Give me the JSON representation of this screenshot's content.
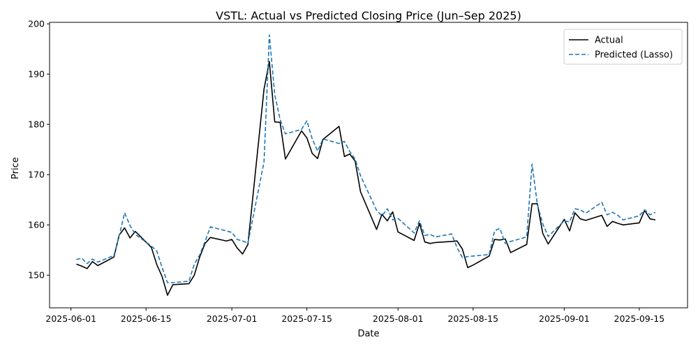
{
  "chart_data": {
    "type": "line",
    "title": "VSTL: Actual vs Predicted Closing Price (Jun–Sep 2025)",
    "xlabel": "Date",
    "ylabel": "Price",
    "xlim": [
      "2025-05-28",
      "2025-09-24"
    ],
    "ylim": [
      143.5,
      200.3
    ],
    "x_ticks": [
      "2025-06-01",
      "2025-06-15",
      "2025-07-01",
      "2025-07-15",
      "2025-08-01",
      "2025-08-15",
      "2025-09-01",
      "2025-09-15"
    ],
    "y_ticks": [
      150,
      160,
      170,
      180,
      190,
      200
    ],
    "grid": false,
    "legend_position": "top-right",
    "series": [
      {
        "name": "Actual",
        "color": "#000000",
        "style": "solid",
        "x": [
          "2025-06-02",
          "2025-06-03",
          "2025-06-04",
          "2025-06-05",
          "2025-06-06",
          "2025-06-09",
          "2025-06-10",
          "2025-06-11",
          "2025-06-12",
          "2025-06-13",
          "2025-06-16",
          "2025-06-17",
          "2025-06-18",
          "2025-06-19",
          "2025-06-20",
          "2025-06-23",
          "2025-06-24",
          "2025-06-25",
          "2025-06-26",
          "2025-06-27",
          "2025-06-30",
          "2025-07-01",
          "2025-07-02",
          "2025-07-03",
          "2025-07-04",
          "2025-07-07",
          "2025-07-08",
          "2025-07-09",
          "2025-07-10",
          "2025-07-11",
          "2025-07-14",
          "2025-07-15",
          "2025-07-16",
          "2025-07-17",
          "2025-07-18",
          "2025-07-21",
          "2025-07-22",
          "2025-07-23",
          "2025-07-24",
          "2025-07-25",
          "2025-07-28",
          "2025-07-29",
          "2025-07-30",
          "2025-07-31",
          "2025-08-01",
          "2025-08-04",
          "2025-08-05",
          "2025-08-06",
          "2025-08-07",
          "2025-08-08",
          "2025-08-11",
          "2025-08-12",
          "2025-08-13",
          "2025-08-14",
          "2025-08-15",
          "2025-08-18",
          "2025-08-19",
          "2025-08-20",
          "2025-08-21",
          "2025-08-22",
          "2025-08-25",
          "2025-08-26",
          "2025-08-27",
          "2025-08-28",
          "2025-08-29",
          "2025-09-01",
          "2025-09-02",
          "2025-09-03",
          "2025-09-04",
          "2025-09-05",
          "2025-09-08",
          "2025-09-09",
          "2025-09-10",
          "2025-09-11",
          "2025-09-12",
          "2025-09-15",
          "2025-09-16",
          "2025-09-17",
          "2025-09-18"
        ],
        "values": [
          152.2,
          151.8,
          151.3,
          152.7,
          151.9,
          153.6,
          158.0,
          159.4,
          157.4,
          158.7,
          155.5,
          152.1,
          149.7,
          146.0,
          148.1,
          148.3,
          150.0,
          153.6,
          156.3,
          157.5,
          156.8,
          157.1,
          155.4,
          154.2,
          156.1,
          187.0,
          192.5,
          180.5,
          180.4,
          173.1,
          178.7,
          177.3,
          174.2,
          173.2,
          177.0,
          179.6,
          173.6,
          174.1,
          172.7,
          166.6,
          159.1,
          162.1,
          160.8,
          162.6,
          158.6,
          156.9,
          160.3,
          156.6,
          156.3,
          156.5,
          156.7,
          156.8,
          155.2,
          151.5,
          152.0,
          153.8,
          157.1,
          157.0,
          157.2,
          154.5,
          156.1,
          164.2,
          164.2,
          158.3,
          156.2,
          161.1,
          158.8,
          162.4,
          161.2,
          160.9,
          161.9,
          159.7,
          160.7,
          160.3,
          160.0,
          160.4,
          162.9,
          161.2,
          161.0
        ]
      },
      {
        "name": "Predicted (Lasso)",
        "color": "#1f77b4",
        "style": "dashed",
        "x": [
          "2025-06-02",
          "2025-06-03",
          "2025-06-04",
          "2025-06-05",
          "2025-06-06",
          "2025-06-09",
          "2025-06-10",
          "2025-06-11",
          "2025-06-12",
          "2025-06-13",
          "2025-06-16",
          "2025-06-17",
          "2025-06-18",
          "2025-06-19",
          "2025-06-20",
          "2025-06-23",
          "2025-06-24",
          "2025-06-25",
          "2025-06-26",
          "2025-06-27",
          "2025-06-30",
          "2025-07-01",
          "2025-07-02",
          "2025-07-03",
          "2025-07-04",
          "2025-07-07",
          "2025-07-08",
          "2025-07-09",
          "2025-07-10",
          "2025-07-11",
          "2025-07-14",
          "2025-07-15",
          "2025-07-16",
          "2025-07-17",
          "2025-07-18",
          "2025-07-21",
          "2025-07-22",
          "2025-07-23",
          "2025-07-24",
          "2025-07-25",
          "2025-07-28",
          "2025-07-29",
          "2025-07-30",
          "2025-07-31",
          "2025-08-01",
          "2025-08-04",
          "2025-08-05",
          "2025-08-06",
          "2025-08-07",
          "2025-08-08",
          "2025-08-11",
          "2025-08-12",
          "2025-08-13",
          "2025-08-14",
          "2025-08-15",
          "2025-08-18",
          "2025-08-19",
          "2025-08-20",
          "2025-08-21",
          "2025-08-22",
          "2025-08-25",
          "2025-08-26",
          "2025-08-27",
          "2025-08-28",
          "2025-08-29",
          "2025-09-01",
          "2025-09-02",
          "2025-09-03",
          "2025-09-04",
          "2025-09-05",
          "2025-09-08",
          "2025-09-09",
          "2025-09-10",
          "2025-09-11",
          "2025-09-12",
          "2025-09-15",
          "2025-09-16",
          "2025-09-17",
          "2025-09-18"
        ],
        "values": [
          153.1,
          153.4,
          152.3,
          153.2,
          152.6,
          153.9,
          157.9,
          162.4,
          159.9,
          158.1,
          155.8,
          154.8,
          151.5,
          148.5,
          148.5,
          148.8,
          152.2,
          154.0,
          156.7,
          159.6,
          158.8,
          158.5,
          157.1,
          156.8,
          156.4,
          172.5,
          197.8,
          185.9,
          181.0,
          178.1,
          179.0,
          180.7,
          177.1,
          174.7,
          177.1,
          176.2,
          176.6,
          174.6,
          173.1,
          169.8,
          162.9,
          161.8,
          163.2,
          161.0,
          161.3,
          158.4,
          160.8,
          157.9,
          158.1,
          157.6,
          158.2,
          155.5,
          153.5,
          153.7,
          153.8,
          154.1,
          158.8,
          159.3,
          156.3,
          156.7,
          157.6,
          172.1,
          164.0,
          160.2,
          157.7,
          160.8,
          160.6,
          163.2,
          163.0,
          162.3,
          164.5,
          162.0,
          162.5,
          161.9,
          161.0,
          161.8,
          163.0,
          162.0,
          162.5
        ]
      }
    ]
  }
}
